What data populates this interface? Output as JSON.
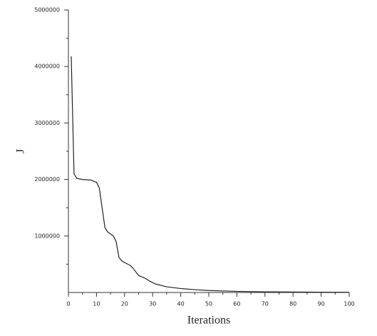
{
  "chart_data": {
    "type": "line",
    "x_label": "Iterations",
    "y_label": "J",
    "x": [
      1,
      2,
      3,
      5,
      8,
      10,
      11,
      12,
      13,
      14,
      16,
      17,
      18,
      19,
      20,
      22,
      23,
      25,
      27,
      29,
      31,
      35,
      40,
      45,
      50,
      60,
      70,
      80,
      90,
      100
    ],
    "series": [
      {
        "name": "J",
        "color": "#222222",
        "values": [
          4180000,
          2100000,
          2020000,
          2000000,
          1990000,
          1950000,
          1850000,
          1500000,
          1150000,
          1070000,
          1000000,
          900000,
          620000,
          560000,
          530000,
          480000,
          430000,
          300000,
          260000,
          200000,
          150000,
          100000,
          70000,
          50000,
          35000,
          20000,
          12000,
          8000,
          5000,
          3000
        ]
      }
    ],
    "xlim": [
      0,
      100
    ],
    "xticks": [
      0,
      10,
      20,
      30,
      40,
      50,
      60,
      70,
      80,
      90,
      100
    ],
    "ylim": [
      0,
      5000000
    ],
    "yticks": [
      1000000,
      2000000,
      3000000,
      4000000,
      5000000
    ],
    "grid": false
  }
}
